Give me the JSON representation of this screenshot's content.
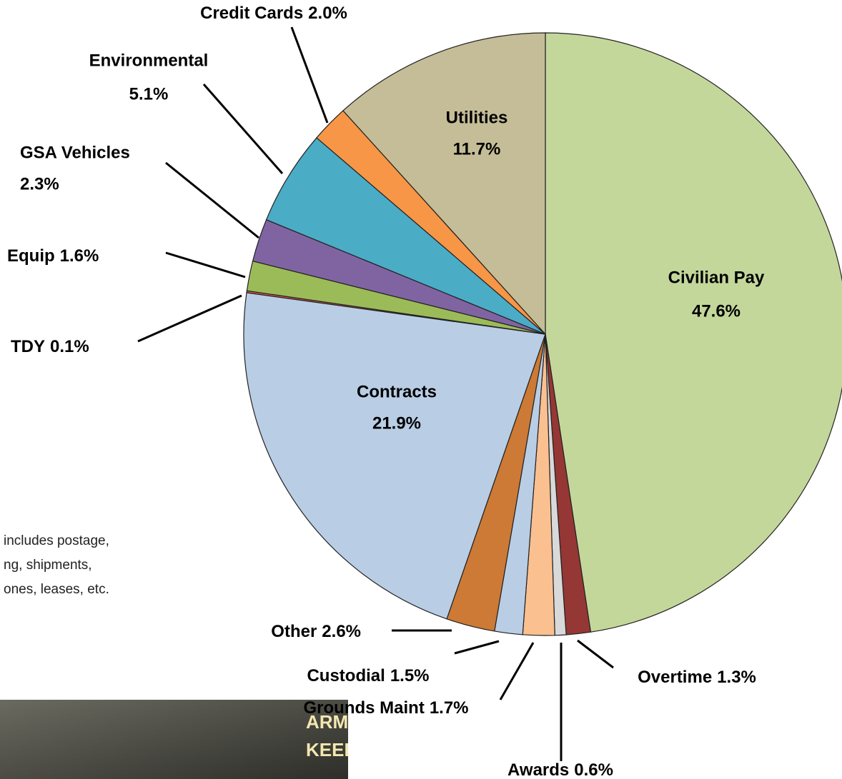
{
  "chart_data": {
    "type": "pie",
    "categories": [
      "Civilian Pay",
      "Overtime",
      "Awards",
      "Grounds Maint",
      "Custodial",
      "Other",
      "Contracts",
      "TDY",
      "Equip",
      "GSA Vehicles",
      "Environmental",
      "Credit Cards",
      "Utilities"
    ],
    "values": [
      47.6,
      1.3,
      0.6,
      1.7,
      1.5,
      2.6,
      21.9,
      0.1,
      1.6,
      2.3,
      5.1,
      2.0,
      11.7
    ],
    "value_labels": [
      "47.6%",
      "1.3%",
      "0.6%",
      "1.7%",
      "1.5%",
      "2.6%",
      "21.9%",
      "0.1%",
      "1.6%",
      "2.3%",
      "5.1%",
      "2.0%",
      "11.7%"
    ],
    "colors": [
      "#c4d79b",
      "#953735",
      "#d9d9d9",
      "#fac090",
      "#b9cde5",
      "#cc7a35",
      "#b9cde5",
      "#e05a4f",
      "#9bbb59",
      "#8064a2",
      "#4bacc6",
      "#f79646",
      "#c4bd97"
    ]
  },
  "note": [
    "includes postage,",
    "ng, shipments,",
    "ones, leases, etc."
  ],
  "banner": [
    "ARMY FAMILY COVENANT:",
    "KEEPING THE PROMISE"
  ]
}
